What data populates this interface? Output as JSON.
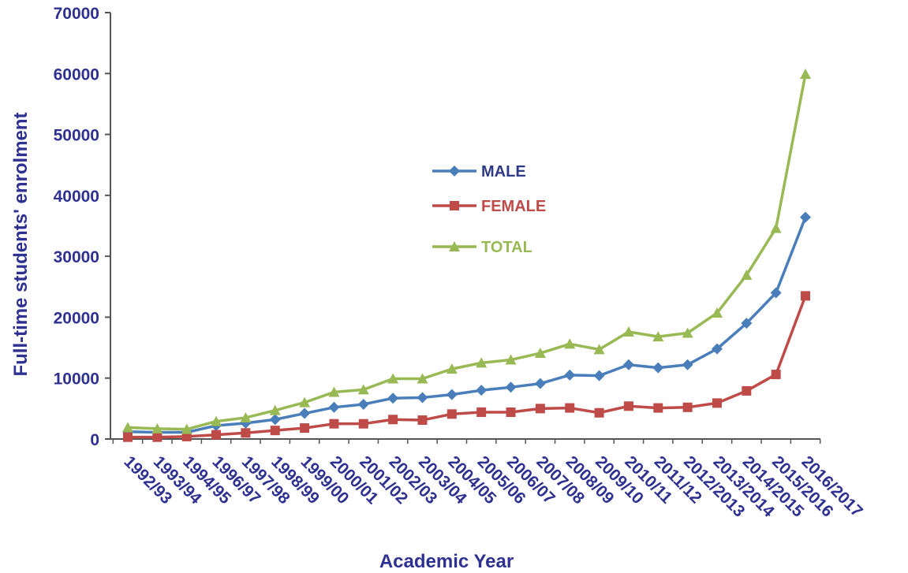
{
  "chart_data": {
    "type": "line",
    "title": "",
    "xlabel": "Academic Year",
    "ylabel": "Full-time students' enrolment",
    "ylim": [
      0,
      70000
    ],
    "yticks": [
      "0",
      "10000",
      "20000",
      "30000",
      "40000",
      "50000",
      "60000",
      "70000"
    ],
    "yticks_values": [
      0,
      10000,
      20000,
      30000,
      40000,
      50000,
      60000,
      70000
    ],
    "grid": false,
    "legend_position": "center",
    "categories": [
      "1992/93",
      "1993/94",
      "1994/95",
      "1996/97",
      "1997/98",
      "1998/99",
      "1999/00",
      "2000/01",
      "2001/02",
      "2002/03",
      "2003/04",
      "2004/05",
      "2005/06",
      "2006/07",
      "2007/08",
      "2008/09",
      "2009/10",
      "2010/11",
      "2011/12",
      "2012/2013",
      "2013/2014",
      "2014/2015",
      "2015/2016",
      "2016/2017"
    ],
    "series": [
      {
        "name": "MALE",
        "color": "#4a7ebb",
        "marker": "diamond",
        "values": [
          1200,
          1100,
          1100,
          2200,
          2600,
          3200,
          4200,
          5200,
          5700,
          6700,
          6800,
          7300,
          8000,
          8500,
          9100,
          10500,
          10400,
          12200,
          11700,
          12200,
          14800,
          19000,
          24000,
          36400
        ]
      },
      {
        "name": "FEMALE",
        "color": "#be4b48",
        "marker": "square",
        "values": [
          300,
          300,
          400,
          700,
          1000,
          1400,
          1800,
          2500,
          2500,
          3200,
          3100,
          4100,
          4400,
          4400,
          5000,
          5100,
          4300,
          5400,
          5100,
          5200,
          5900,
          7900,
          10600,
          23500
        ]
      },
      {
        "name": "TOTAL",
        "color": "#98b954",
        "marker": "triangle",
        "values": [
          1900,
          1700,
          1600,
          2900,
          3500,
          4700,
          6000,
          7700,
          8100,
          9900,
          9900,
          11500,
          12500,
          13000,
          14100,
          15600,
          14700,
          17600,
          16800,
          17400,
          20700,
          26900,
          34600,
          59900
        ]
      }
    ]
  }
}
